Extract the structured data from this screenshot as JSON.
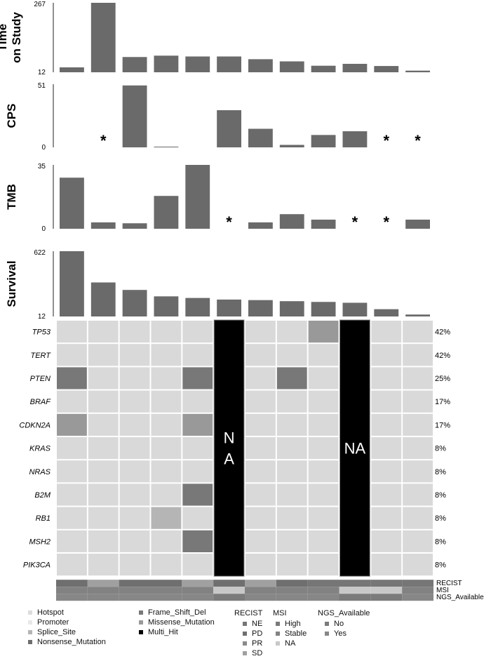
{
  "chart_data": [
    {
      "type": "bar",
      "ylabel": "Time on Study",
      "ylim": [
        12,
        267
      ],
      "yticks": [
        "267",
        "12"
      ],
      "values": [
        30,
        267,
        68,
        73,
        70,
        70,
        60,
        52,
        36,
        43,
        35,
        18
      ]
    },
    {
      "type": "bar",
      "ylabel": "CPS",
      "ylim": [
        0,
        51
      ],
      "yticks": [
        "51",
        "0"
      ],
      "values": [
        0,
        null,
        50,
        0.4,
        0,
        30,
        15,
        2,
        10,
        13,
        null,
        null
      ],
      "missing_marker": "*"
    },
    {
      "type": "bar",
      "ylabel": "TMB",
      "ylim": [
        0,
        35
      ],
      "yticks": [
        "35",
        "0"
      ],
      "values": [
        28,
        3.5,
        3,
        18,
        35,
        null,
        3.5,
        8,
        5,
        null,
        null,
        5
      ],
      "missing_marker": "*"
    },
    {
      "type": "bar",
      "ylabel": "Survival",
      "ylim": [
        12,
        622
      ],
      "yticks": [
        "622",
        "12"
      ],
      "values": [
        622,
        330,
        260,
        200,
        185,
        170,
        165,
        155,
        148,
        140,
        80,
        30
      ]
    },
    {
      "type": "heatmap",
      "genes": [
        "TP53",
        "TERT",
        "PTEN",
        "BRAF",
        "CDKN2A",
        "KRAS",
        "NRAS",
        "B2M",
        "RB1",
        "MSH2",
        "PIK3CA"
      ],
      "percentages": [
        "42%",
        "42%",
        "25%",
        "17%",
        "17%",
        "8%",
        "8%",
        "8%",
        "8%",
        "8%",
        "8%"
      ],
      "na_columns": [
        6,
        10
      ],
      "na_labels": [
        "N\nA",
        "NA"
      ],
      "cells": [
        {
          "gene": "TP53",
          "sample": 9,
          "alteration": "Missense_Mutation"
        },
        {
          "gene": "PTEN",
          "sample": 1,
          "alteration": "Frame_Shift_Del"
        },
        {
          "gene": "PTEN",
          "sample": 5,
          "alteration": "Frame_Shift_Del"
        },
        {
          "gene": "PTEN",
          "sample": 8,
          "alteration": "Frame_Shift_Del"
        },
        {
          "gene": "CDKN2A",
          "sample": 1,
          "alteration": "Missense_Mutation"
        },
        {
          "gene": "CDKN2A",
          "sample": 5,
          "alteration": "Missense_Mutation"
        },
        {
          "gene": "B2M",
          "sample": 5,
          "alteration": "Frame_Shift_Del"
        },
        {
          "gene": "RB1",
          "sample": 4,
          "alteration": "Splice_Site"
        },
        {
          "gene": "MSH2",
          "sample": 5,
          "alteration": "Frame_Shift_Del"
        }
      ],
      "annotations": [
        {
          "name": "RECIST",
          "values": [
            "PD",
            "SD",
            "PD",
            "PD",
            "SD",
            "PD",
            "SD",
            "PD",
            "NE",
            "NE",
            "NE",
            "NE"
          ]
        },
        {
          "name": "MSI",
          "values": [
            "Stable",
            "Stable",
            "Stable",
            "Stable",
            "Stable",
            "NA",
            "Stable",
            "Stable",
            "Stable",
            "NA",
            "NA",
            "Stable"
          ]
        },
        {
          "name": "NGS_Available",
          "values": [
            "Yes",
            "Yes",
            "Yes",
            "Yes",
            "Yes",
            "No",
            "Yes",
            "Yes",
            "Yes",
            "No",
            "No",
            "Yes"
          ]
        }
      ]
    }
  ],
  "colors": {
    "bar": "#6a6a6a",
    "cell_empty": "#d9d9d9",
    "na_block": "#000000",
    "Hotspot": "#dcdcdc",
    "Promoter": "#e8e8e8",
    "Splice_Site": "#b5b5b5",
    "Nonsense_Mutation": "#6e6e6e",
    "Frame_Shift_Del": "#787878",
    "Missense_Mutation": "#999999",
    "Multi_Hit": "#000000",
    "NE": "#767676",
    "PD": "#6f6f6f",
    "PR": "#8a8a8a",
    "SD": "#a0a0a0",
    "High": "#7a7a7a",
    "Stable": "#828282",
    "NA": "#c8c8c8",
    "No": "#7b7b7b",
    "Yes": "#878787"
  },
  "legend": {
    "alterations": {
      "col1": [
        "Hotspot",
        "Promoter",
        "Splice_Site",
        "Nonsense_Mutation"
      ],
      "col2": [
        "Frame_Shift_Del",
        "Missense_Mutation",
        "Multi_Hit"
      ]
    },
    "recist_title": "RECIST",
    "recist": [
      "NE",
      "PD",
      "PR",
      "SD"
    ],
    "msi_title": "MSI",
    "msi": [
      "High",
      "Stable",
      "NA"
    ],
    "ngs_title": "NGS_Available",
    "ngs": [
      "No",
      "Yes"
    ]
  }
}
